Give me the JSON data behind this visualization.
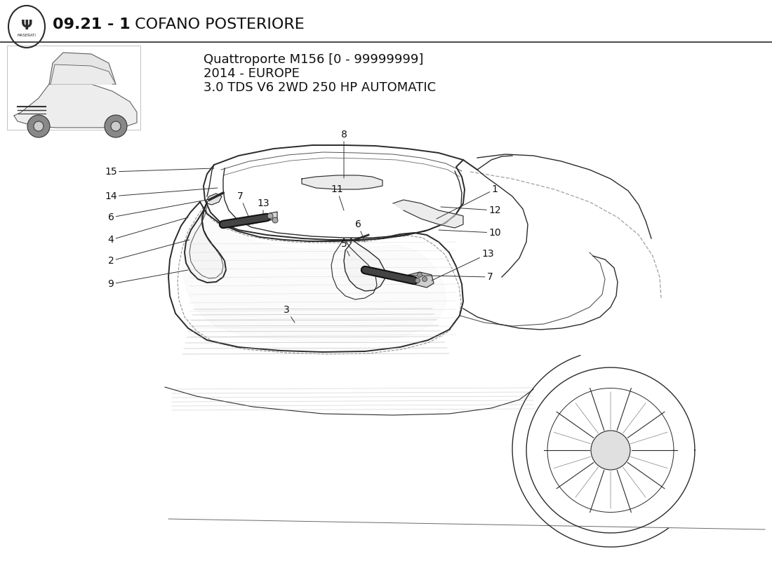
{
  "title_bold": "09.21 - 1",
  "title_normal": " COFANO POSTERIORE",
  "subtitle_line1": "Quattroporte M156 [0 - 99999999]",
  "subtitle_line2": "2014 - EUROPE",
  "subtitle_line3": "3.0 TDS V6 2WD 250 HP AUTOMATIC",
  "background_color": "#ffffff",
  "line_color": "#2a2a2a",
  "font_size_title": 16,
  "font_size_subtitle": 12,
  "font_size_labels": 10
}
